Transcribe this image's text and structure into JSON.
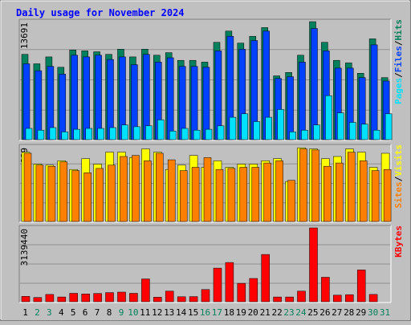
{
  "chart_data": {
    "type": "bar",
    "title": "Daily usage for November 2024",
    "categories": [
      "1",
      "2",
      "3",
      "4",
      "5",
      "6",
      "7",
      "8",
      "9",
      "10",
      "11",
      "12",
      "13",
      "14",
      "15",
      "16",
      "17",
      "18",
      "19",
      "20",
      "21",
      "22",
      "23",
      "24",
      "25",
      "26",
      "27",
      "28",
      "29",
      "30",
      "31"
    ],
    "weekend_days": [
      "2",
      "3",
      "9",
      "10",
      "16",
      "17",
      "23",
      "24",
      "30",
      "31"
    ],
    "panels": [
      {
        "name": "hits-files-pages",
        "ymax_label": "13691",
        "ymax": 13691,
        "axis_labels": [
          "Pages",
          "Files",
          "Hits"
        ],
        "series": [
          {
            "name": "Hits",
            "color": "#00805c",
            "values": [
              9900,
              8800,
              9600,
              8400,
              10400,
              10300,
              10200,
              9900,
              10500,
              9600,
              10500,
              9800,
              10100,
              9200,
              9200,
              9000,
              11300,
              12600,
              11200,
              12000,
              13000,
              7400,
              7800,
              9800,
              13691,
              11300,
              9200,
              8900,
              7700,
              11700,
              7200
            ]
          },
          {
            "name": "Files",
            "color": "#0040ff",
            "values": [
              8800,
              8000,
              8500,
              7600,
              9800,
              9600,
              9800,
              9300,
              9600,
              8700,
              9900,
              9000,
              9500,
              8500,
              8500,
              8400,
              10300,
              12000,
              10500,
              11500,
              12600,
              7100,
              7300,
              9000,
              12900,
              10300,
              8300,
              8300,
              7200,
              11000,
              6800
            ]
          },
          {
            "name": "Pages",
            "color": "#00e0ff",
            "values": [
              1300,
              1100,
              1400,
              900,
              1200,
              1300,
              1300,
              1400,
              1700,
              1500,
              1600,
              2300,
              1000,
              1300,
              1100,
              1200,
              1600,
              2600,
              3000,
              2100,
              2600,
              3500,
              900,
              1100,
              1700,
              5100,
              3100,
              2000,
              1800,
              1100,
              3000
            ]
          }
        ]
      },
      {
        "name": "visits-sites",
        "ymax_label": "689",
        "ymax": 689,
        "axis_labels": [
          "Sites",
          "Visits"
        ],
        "series": [
          {
            "name": "Visits",
            "color": "#ffff00",
            "values": [
              640,
              530,
              520,
              560,
              480,
              580,
              530,
              640,
              640,
              590,
              670,
              640,
              480,
              520,
              610,
              500,
              560,
              500,
              530,
              530,
              560,
              580,
              370,
              680,
              670,
              580,
              600,
              670,
              640,
              500,
              630
            ]
          },
          {
            "name": "Sites",
            "color": "#ff8000",
            "values": [
              630,
              520,
              510,
              550,
              470,
              450,
              490,
              520,
              600,
              610,
              560,
              630,
              570,
              470,
              500,
              590,
              480,
              490,
              500,
              500,
              540,
              560,
              380,
              670,
              660,
              510,
              540,
              640,
              560,
              470,
              480
            ]
          }
        ]
      },
      {
        "name": "kbytes",
        "ymax_label": "3139440",
        "ymax": 3139440,
        "axis_labels": [
          "KBytes"
        ],
        "series": [
          {
            "name": "KBytes",
            "color": "#ff0000",
            "values": [
              230000,
              180000,
              310000,
              200000,
              360000,
              330000,
              350000,
              390000,
              410000,
              360000,
              970000,
              190000,
              450000,
              210000,
              220000,
              520000,
              1430000,
              1670000,
              780000,
              990000,
              2010000,
              200000,
              200000,
              450000,
              3139440,
              1040000,
              280000,
              300000,
              1350000,
              310000,
              0
            ]
          }
        ]
      }
    ]
  },
  "colors": {
    "background": "#c0c0c0",
    "title": "#0000ff",
    "day_weekday": "#000000",
    "day_weekend": "#00805c"
  }
}
